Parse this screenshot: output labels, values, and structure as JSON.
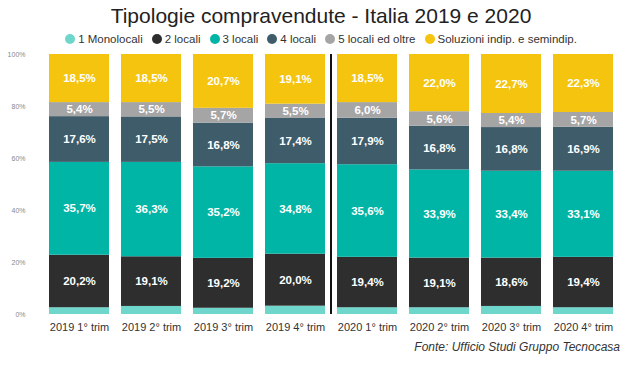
{
  "chart_data": {
    "type": "bar",
    "title": "Tipologie compravendute - Italia 2019 e 2020",
    "source": "Fonte: Ufficio Studi Gruppo Tecnocasa",
    "stacked": true,
    "data_labels": true,
    "grid": false,
    "legend": "top",
    "categories": [
      "2019 1° trim",
      "2019 2° trim",
      "2019 3° trim",
      "2019 4° trim",
      "2020 1° trim",
      "2020 2° trim",
      "2020 3° trim",
      "2020 4° trim"
    ],
    "ylim": [
      0,
      100
    ],
    "yticks": [
      {
        "value": 0,
        "label": "0%"
      },
      {
        "value": 20,
        "label": "20%"
      },
      {
        "value": 40,
        "label": "40%"
      },
      {
        "value": 60,
        "label": "60%"
      },
      {
        "value": 80,
        "label": "80%"
      },
      {
        "value": 100,
        "label": "100%"
      }
    ],
    "series": [
      {
        "name": "1 Monolocali",
        "color": "#6fd6cb",
        "values": [
          2.6,
          3.1,
          2.4,
          3.2,
          2.6,
          2.6,
          3.1,
          2.6
        ]
      },
      {
        "name": "2 locali",
        "color": "#2e2e2e",
        "values": [
          20.2,
          19.1,
          19.2,
          20.0,
          19.4,
          19.1,
          18.6,
          19.4
        ],
        "value_labels": [
          "20,2%",
          "19,1%",
          "19,2%",
          "20,0%",
          "19,4%",
          "19,1%",
          "18,6%",
          "19,4%"
        ]
      },
      {
        "name": "3 locali",
        "color": "#01b5a6",
        "values": [
          35.7,
          36.3,
          35.2,
          34.8,
          35.6,
          33.9,
          33.4,
          33.1
        ],
        "value_labels": [
          "35,7%",
          "36,3%",
          "35,2%",
          "34,8%",
          "35,6%",
          "33,9%",
          "33,4%",
          "33,1%"
        ]
      },
      {
        "name": "4 locali",
        "color": "#3f5c6a",
        "values": [
          17.6,
          17.5,
          16.8,
          17.4,
          17.9,
          16.8,
          16.8,
          16.9
        ],
        "value_labels": [
          "17,6%",
          "17,5%",
          "16,8%",
          "17,4%",
          "17,9%",
          "16,8%",
          "16,8%",
          "16,9%"
        ]
      },
      {
        "name": "5 locali ed oltre",
        "color": "#a5a5a5",
        "values": [
          5.4,
          5.5,
          5.7,
          5.5,
          6.0,
          5.6,
          5.4,
          5.7
        ],
        "value_labels": [
          "5,4%",
          "5,5%",
          "5,7%",
          "5,5%",
          "6,0%",
          "5,6%",
          "5,4%",
          "5,7%"
        ]
      },
      {
        "name": "Soluzioni indip. e semindip.",
        "color": "#f4c40f",
        "values": [
          18.5,
          18.5,
          20.7,
          19.1,
          18.5,
          22.0,
          22.7,
          22.3
        ],
        "value_labels": [
          "18,5%",
          "18,5%",
          "20,7%",
          "19,1%",
          "18,5%",
          "22,0%",
          "22,7%",
          "22,3%"
        ]
      }
    ]
  }
}
